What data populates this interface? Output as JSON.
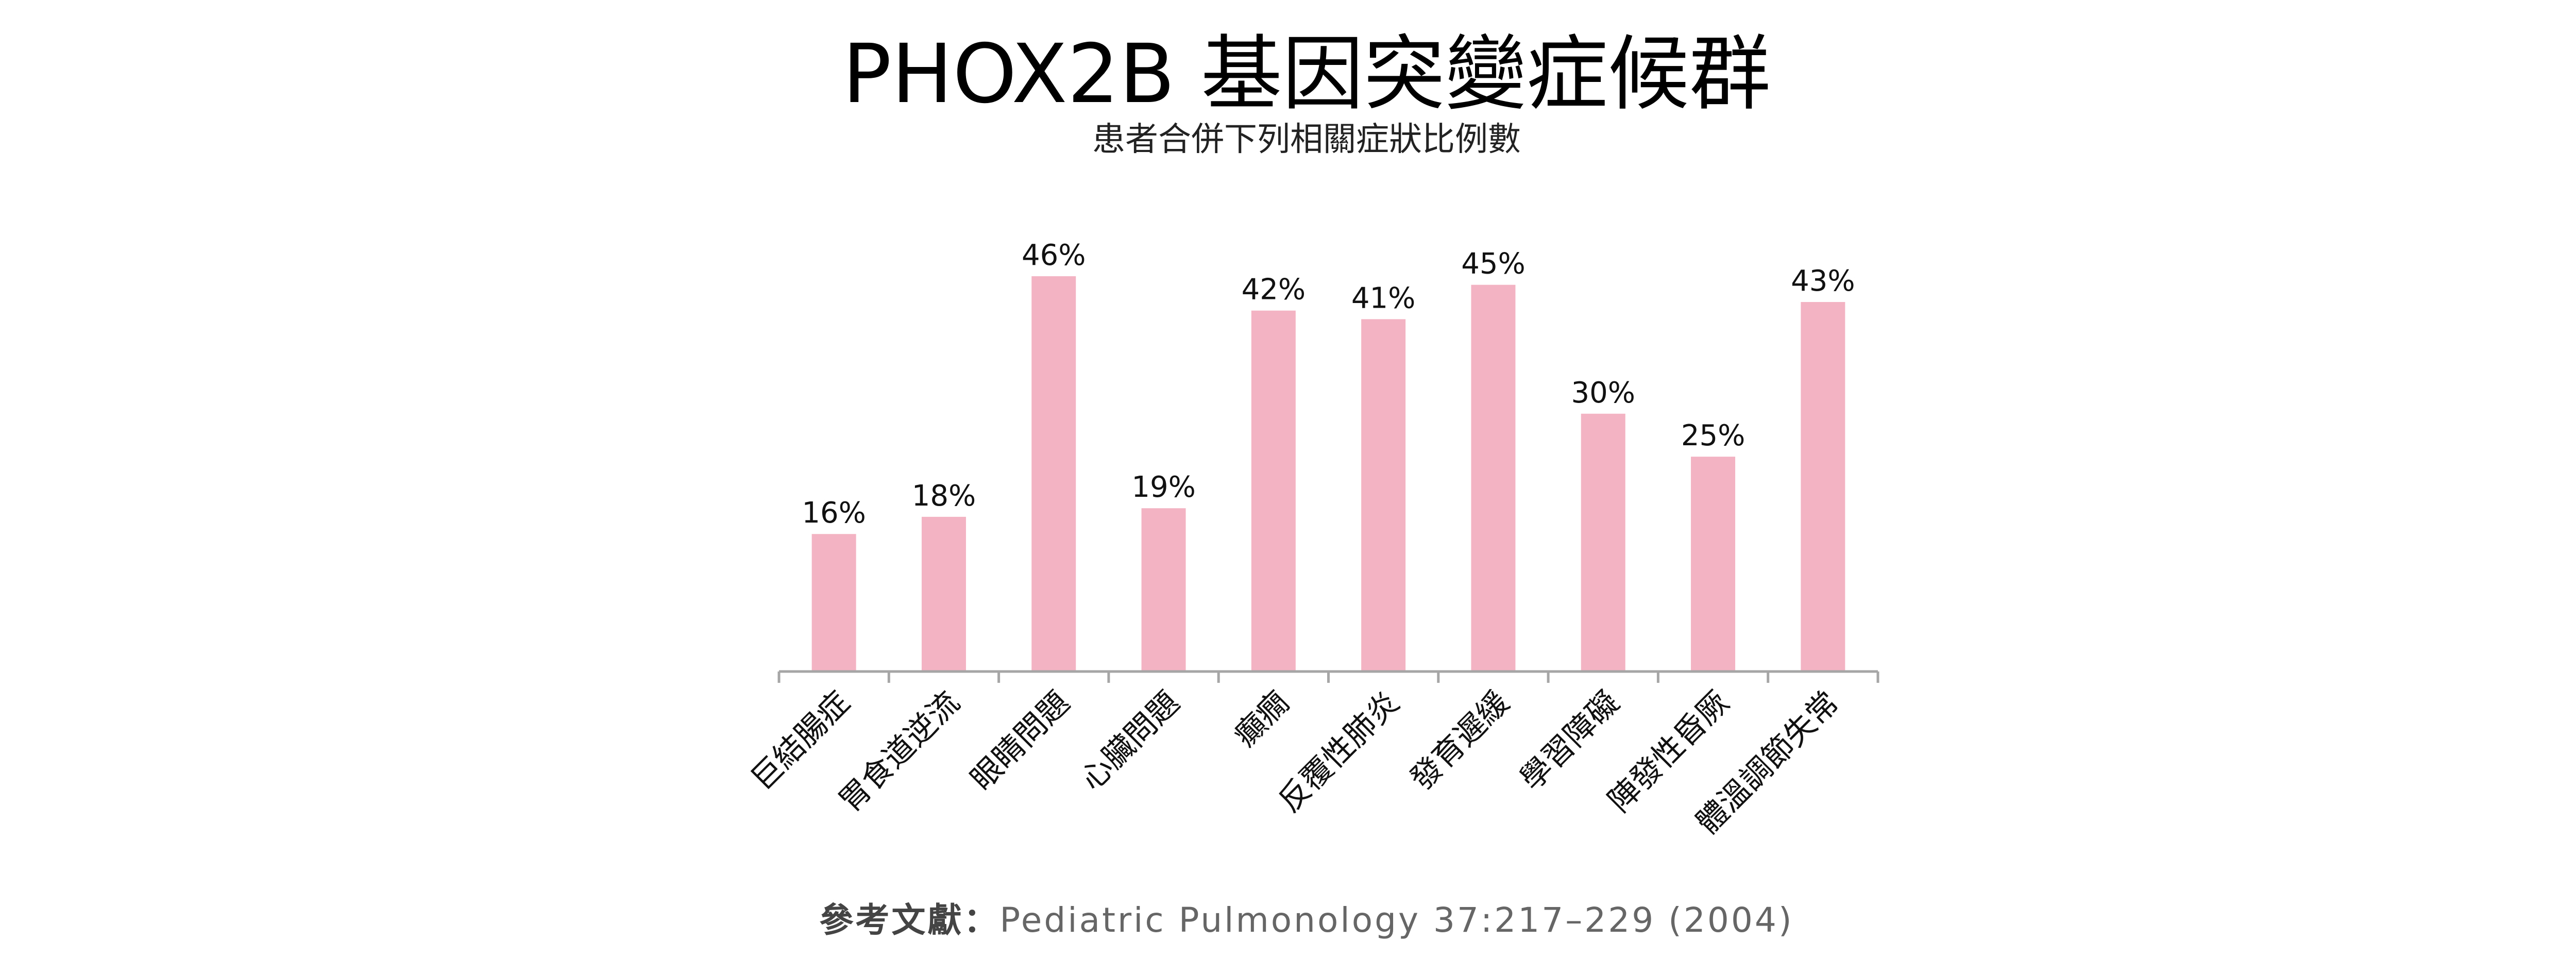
{
  "title": "PHOX2B 基因突變症候群",
  "subtitle": "患者合併下列相關症狀比例數",
  "reference": {
    "prefix": "參考文獻：",
    "text": "Pediatric Pulmonology 37:217–229 (2004)"
  },
  "colors": {
    "bar": "#F4B3C2",
    "axis": "#A6A6A6",
    "background": "#FFFFFF"
  },
  "chart_data": {
    "type": "bar",
    "title": "PHOX2B 基因突變症候群",
    "subtitle": "患者合併下列相關症狀比例數",
    "categories": [
      "巨結腸症",
      "胃食道逆流",
      "眼睛問題",
      "心臟問題",
      "癲癇",
      "反覆性肺炎",
      "發育遲緩",
      "學習障礙",
      "陣發性昏厥",
      "體溫調節失常"
    ],
    "values": [
      16,
      18,
      46,
      19,
      42,
      41,
      45,
      30,
      25,
      43
    ],
    "data_labels": [
      "16%",
      "18%",
      "46%",
      "19%",
      "42%",
      "41%",
      "45%",
      "30%",
      "25%",
      "43%"
    ],
    "unit": "%",
    "ylim": [
      0,
      46
    ],
    "grid": false,
    "legend": "none",
    "value_axis_visible": false
  }
}
